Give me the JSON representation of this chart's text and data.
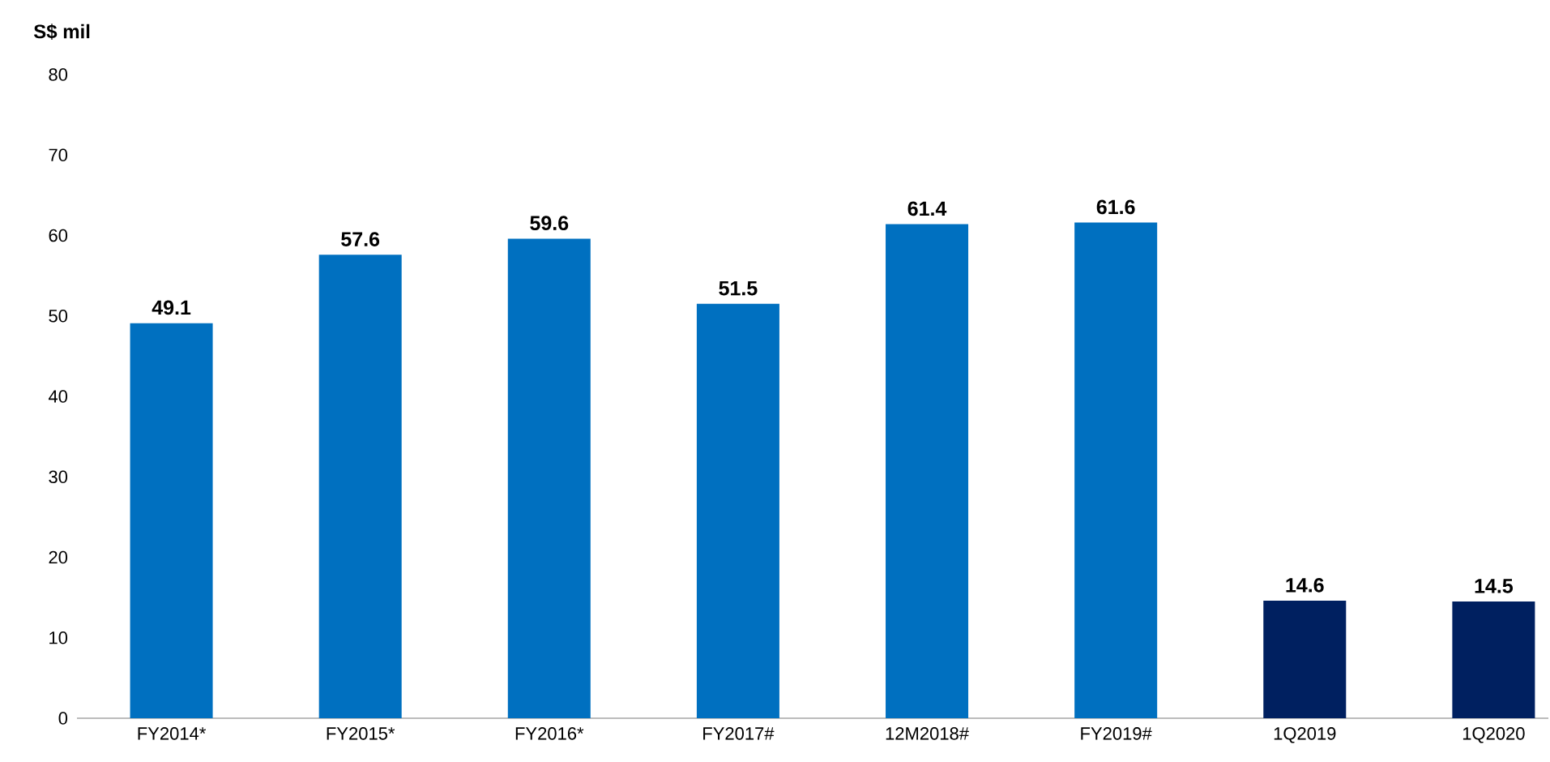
{
  "chart_data": {
    "type": "bar",
    "ylabel": "S$ mil",
    "categories": [
      "FY2014*",
      "FY2015*",
      "FY2016*",
      "FY2017#",
      "12M2018#",
      "FY2019#",
      "1Q2019",
      "1Q2020"
    ],
    "values": [
      49.1,
      57.6,
      59.6,
      51.5,
      61.4,
      61.6,
      14.6,
      14.5
    ],
    "colors": [
      "#0070c0",
      "#0070c0",
      "#0070c0",
      "#0070c0",
      "#0070c0",
      "#0070c0",
      "#002060",
      "#002060"
    ],
    "ylim": [
      0,
      80
    ],
    "yticks": [
      0,
      10,
      20,
      30,
      40,
      50,
      60,
      70,
      80
    ],
    "data_labels": true
  }
}
